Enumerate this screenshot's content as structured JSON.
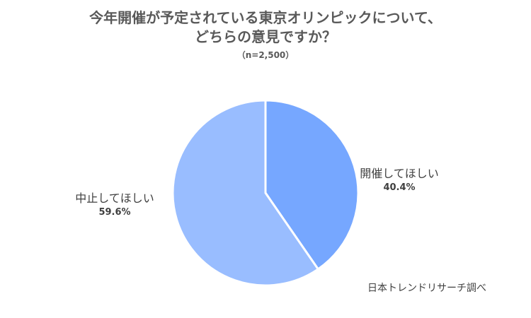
{
  "chart_data": {
    "type": "pie",
    "title_lines": [
      "今年開催が予定されている東京オリンピックについて、",
      "どちらの意見ですか？"
    ],
    "subtitle": "（n=2,500）",
    "slices": [
      {
        "label": "開催してほしい",
        "value": 40.4,
        "value_label": "40.4%",
        "color": "#76a7ff"
      },
      {
        "label": "中止してほしい",
        "value": 59.6,
        "value_label": "59.6%",
        "color": "#99bdff"
      }
    ],
    "start_angle": "12 o'clock",
    "direction": "clockwise",
    "legend": "none"
  },
  "source": "日本トレンドリサーチ調べ"
}
